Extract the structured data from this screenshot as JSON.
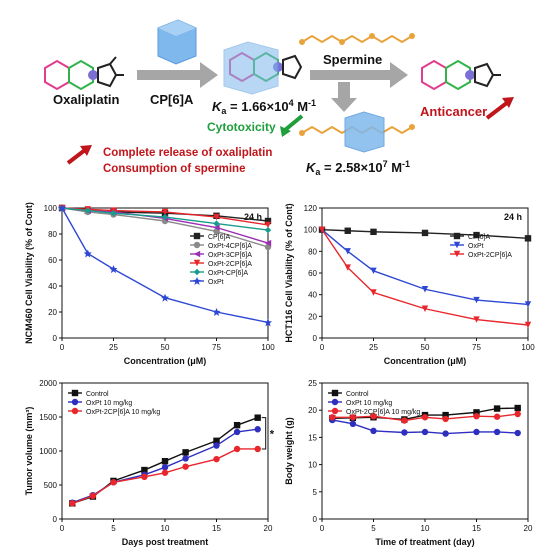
{
  "scheme": {
    "oxaliplatin_label": "Oxaliplatin",
    "host_label": "CP[6]A",
    "ka1_prefix": "K",
    "ka1_sub": "a",
    "ka1_value": " = 1.66×10",
    "ka1_exp": "4",
    "ka1_unit": " M",
    "ka1_unit_exp": "-1",
    "spermine_label": "Spermine",
    "cytotoxicity_label": "Cytotoxicity",
    "anticancer_label": "Anticancer",
    "note_line1": "Complete release of oxaliplatin",
    "note_line2": "Consumption of spermine",
    "ka2_prefix": "K",
    "ka2_sub": "a",
    "ka2_value": " = 2.58×10",
    "ka2_exp": "7",
    "ka2_unit": " M",
    "ka2_unit_exp": "-1",
    "colors": {
      "arrow_gray": "#a6a6a6",
      "red_text": "#c0151b",
      "green_text": "#1f9e3c",
      "cube_blue": "#7fb8ec",
      "chain_orange": "#e8a33a",
      "ring_pink": "#e23c8c",
      "ring_green": "#2fb34a",
      "pt_blue": "#7b6fd6"
    }
  },
  "chart_data": [
    {
      "type": "line",
      "id": "ncm460",
      "title": "24 h",
      "xlabel": "Concentration (μM)",
      "ylabel": "NCM460 Cell Viability (% of Cont)",
      "x": [
        0,
        12.5,
        25,
        50,
        75,
        100
      ],
      "xlim": [
        0,
        100
      ],
      "ylim": [
        0,
        100
      ],
      "xticks": [
        0,
        25,
        50,
        75,
        100
      ],
      "yticks": [
        0,
        20,
        40,
        60,
        80,
        100
      ],
      "legend_position": "center-right",
      "series": [
        {
          "name": "CP[6]A",
          "color": "#222222",
          "marker": "square",
          "values": [
            100,
            98,
            97,
            96,
            94,
            90
          ]
        },
        {
          "name": "OxPt-4CP[6]A",
          "color": "#8a8a8a",
          "marker": "circle",
          "values": [
            100,
            97,
            95,
            90,
            82,
            70
          ]
        },
        {
          "name": "OxPt-3CP[6]A",
          "color": "#9b2fb4",
          "marker": "triangle-left",
          "values": [
            100,
            98,
            97,
            92,
            85,
            73
          ]
        },
        {
          "name": "OxPt-2CP[6]A",
          "color": "#e8262b",
          "marker": "triangle-down",
          "values": [
            100,
            99,
            98,
            97,
            93,
            87
          ]
        },
        {
          "name": "OxPt-CP[6]A",
          "color": "#1a9c8c",
          "marker": "diamond",
          "values": [
            100,
            98,
            96,
            93,
            88,
            83
          ]
        },
        {
          "name": "OxPt",
          "color": "#2f48d4",
          "marker": "star",
          "values": [
            100,
            65,
            53,
            31,
            20,
            12
          ]
        }
      ]
    },
    {
      "type": "line",
      "id": "hct116",
      "title": "24 h",
      "xlabel": "Concentration (μM)",
      "ylabel": "HCT116 Cell Viability (% of Cont)",
      "x": [
        0,
        12.5,
        25,
        50,
        75,
        100
      ],
      "xlim": [
        0,
        100
      ],
      "ylim": [
        0,
        120
      ],
      "xticks": [
        0,
        25,
        50,
        75,
        100
      ],
      "yticks": [
        0,
        20,
        40,
        60,
        80,
        100,
        120
      ],
      "legend_position": "center-right",
      "series": [
        {
          "name": "CP[6]A",
          "color": "#222222",
          "marker": "square",
          "values": [
            100,
            99,
            98,
            97,
            95,
            92
          ]
        },
        {
          "name": "OxPt",
          "color": "#2f48d4",
          "marker": "triangle-down",
          "values": [
            100,
            80,
            62,
            45,
            35,
            31
          ]
        },
        {
          "name": "OxPt-2CP[6]A",
          "color": "#e8262b",
          "marker": "triangle-down",
          "values": [
            100,
            65,
            42,
            27,
            17,
            12
          ]
        }
      ]
    },
    {
      "type": "line",
      "id": "tumor",
      "title": "",
      "xlabel": "Days post treatment",
      "ylabel": "Tumor volume (mm³)",
      "x": [
        1,
        3,
        5,
        8,
        10,
        12,
        15,
        17,
        19
      ],
      "xlim": [
        0,
        20
      ],
      "ylim": [
        0,
        2000
      ],
      "xticks": [
        0,
        5,
        10,
        15,
        20
      ],
      "yticks": [
        0,
        500,
        1000,
        1500,
        2000
      ],
      "legend_position": "top-left",
      "annotation": "*",
      "series": [
        {
          "name": "Control",
          "color": "#111111",
          "marker": "square",
          "values": [
            230,
            330,
            560,
            720,
            850,
            980,
            1150,
            1380,
            1490
          ]
        },
        {
          "name": "OxPt 10 mg/kg",
          "color": "#2f2fbf",
          "marker": "circle",
          "values": [
            240,
            350,
            540,
            650,
            760,
            890,
            1080,
            1280,
            1320
          ]
        },
        {
          "name": "OxPt-2CP[6]A 10 mg/kg",
          "color": "#e8262b",
          "marker": "circle",
          "values": [
            230,
            340,
            540,
            620,
            680,
            770,
            880,
            1030,
            1030
          ]
        }
      ]
    },
    {
      "type": "line",
      "id": "bodyweight",
      "title": "",
      "xlabel": "Time of treatment (day)",
      "ylabel": "Body weight (g)",
      "x": [
        1,
        3,
        5,
        8,
        10,
        12,
        15,
        17,
        19
      ],
      "xlim": [
        0,
        20
      ],
      "ylim": [
        0,
        25
      ],
      "xticks": [
        0,
        5,
        10,
        15,
        20
      ],
      "yticks": [
        0,
        5,
        10,
        15,
        20,
        25
      ],
      "legend_position": "top-left",
      "series": [
        {
          "name": "Control",
          "color": "#111111",
          "marker": "square",
          "values": [
            18.5,
            18.6,
            18.7,
            18.3,
            19.1,
            19.1,
            19.6,
            20.3,
            20.4
          ]
        },
        {
          "name": "OxPt 10 mg/kg",
          "color": "#2f2fbf",
          "marker": "circle",
          "values": [
            18.2,
            17.5,
            16.2,
            15.9,
            16.0,
            15.7,
            16.0,
            16.0,
            15.8
          ]
        },
        {
          "name": "OxPt-2CP[6]A 10 mg/kg",
          "color": "#e8262b",
          "marker": "circle",
          "values": [
            18.7,
            18.7,
            18.9,
            18.1,
            18.7,
            18.4,
            18.9,
            18.8,
            19.3
          ]
        }
      ]
    }
  ]
}
